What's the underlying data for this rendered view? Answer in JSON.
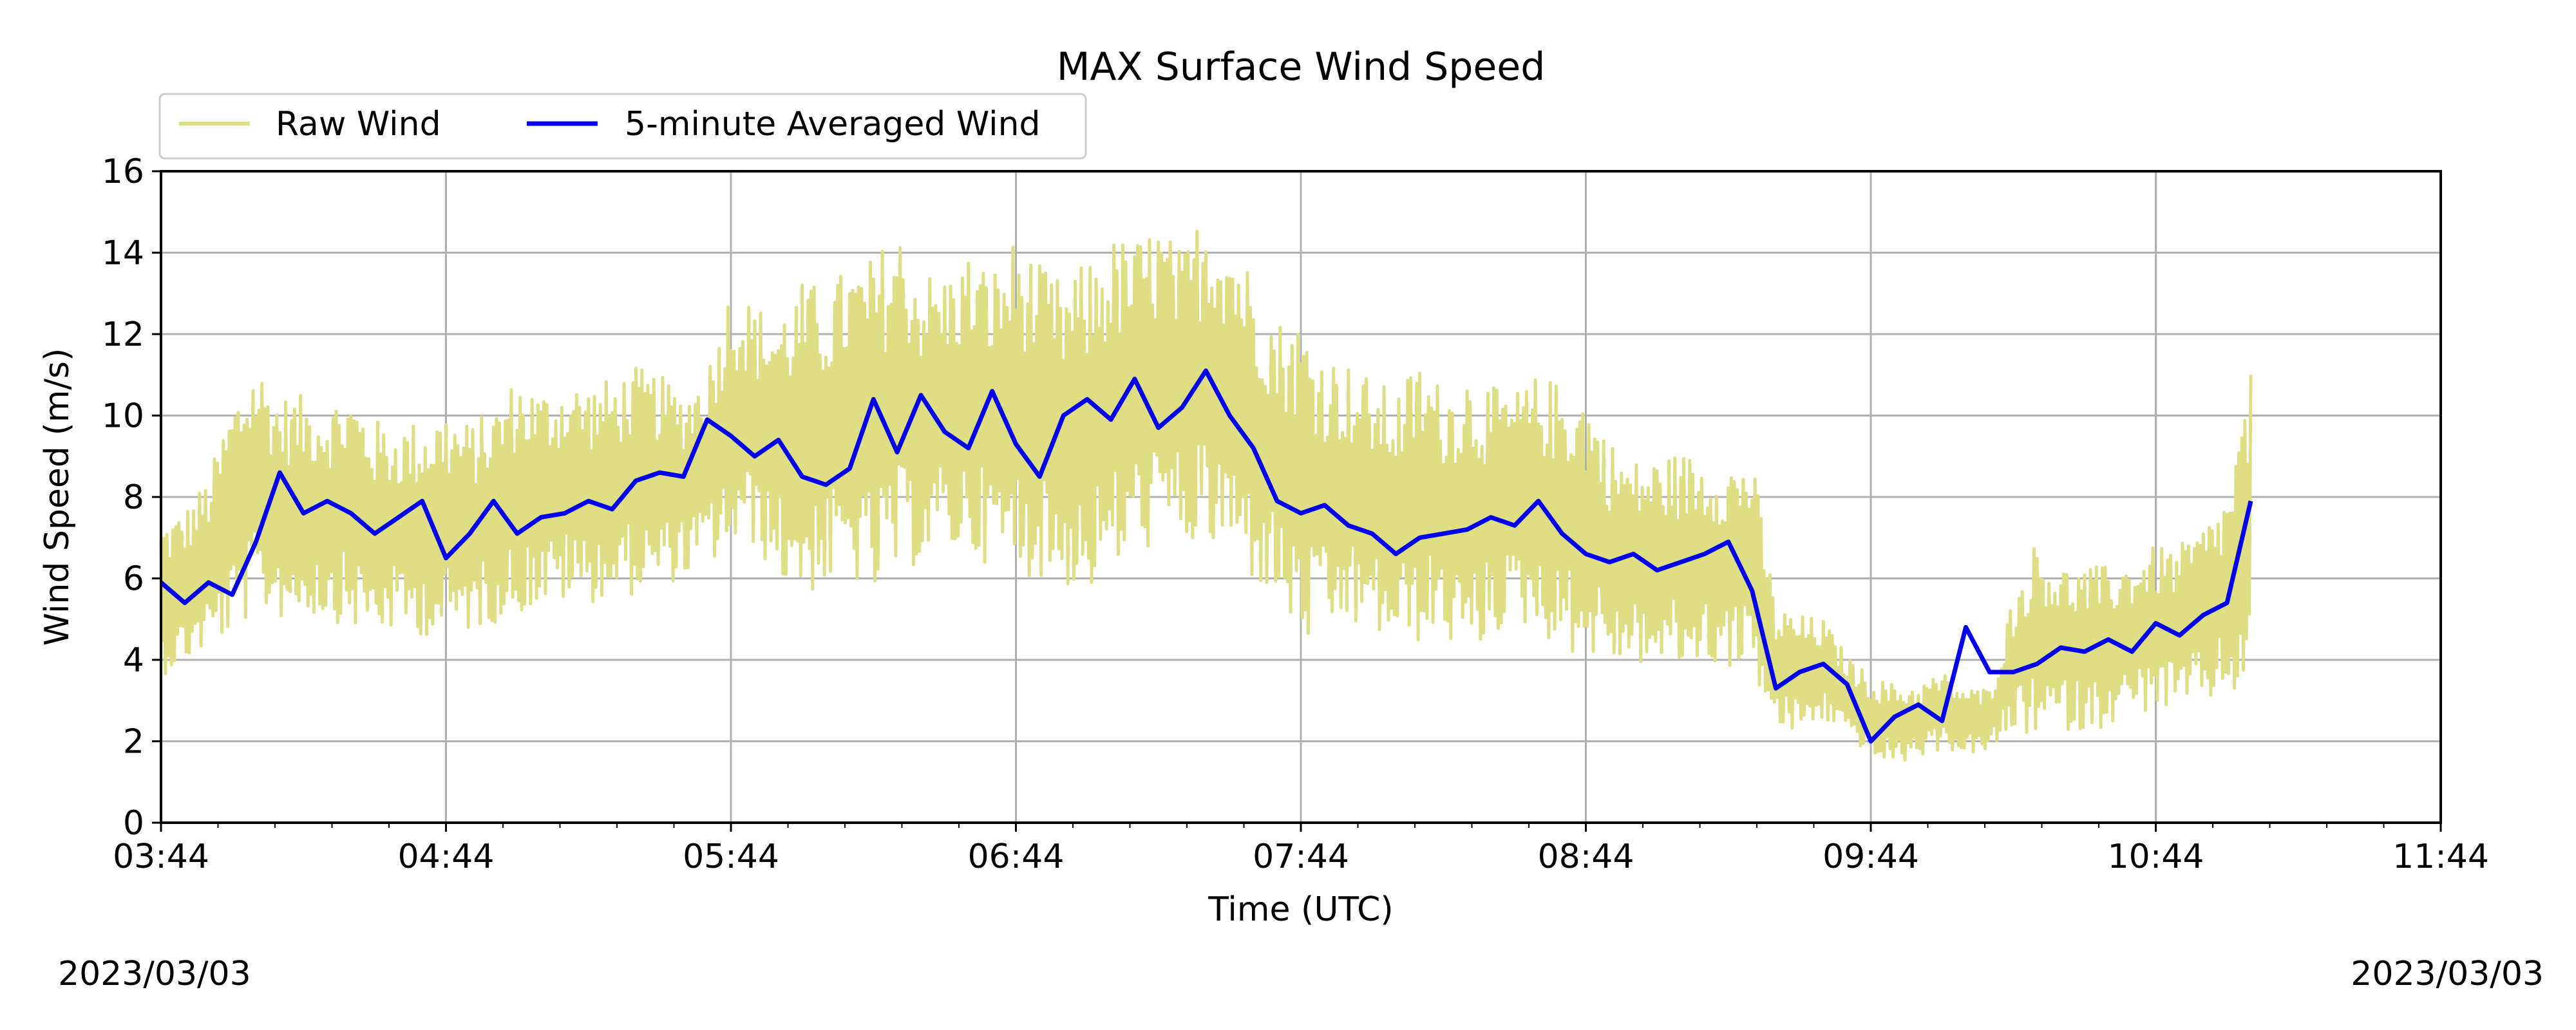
{
  "chart_data": {
    "type": "line",
    "title": "MAX Surface Wind Speed",
    "xlabel": "Time (UTC)",
    "ylabel": "Wind Speed (m/s)",
    "date_left": "2023/03/03",
    "date_right": "2023/03/03",
    "x_unit": "UTC time of day",
    "xlim": [
      "03:44",
      "11:44"
    ],
    "ylim": [
      0,
      16
    ],
    "x_ticks": [
      "03:44",
      "04:44",
      "05:44",
      "06:44",
      "07:44",
      "08:44",
      "09:44",
      "10:44",
      "11:44"
    ],
    "y_ticks": [
      "0",
      "2",
      "4",
      "6",
      "8",
      "10",
      "12",
      "14",
      "16"
    ],
    "grid": true,
    "legend_position": "above plot, top-left",
    "series": [
      {
        "name": "Raw Wind",
        "color": "#dede85",
        "kind": "raw",
        "x": [
          "03:44",
          "03:49",
          "03:54",
          "03:59",
          "04:04",
          "04:09",
          "04:14",
          "04:19",
          "04:24",
          "04:29",
          "04:34",
          "04:39",
          "04:44",
          "04:49",
          "04:54",
          "04:59",
          "05:04",
          "05:09",
          "05:14",
          "05:19",
          "05:24",
          "05:29",
          "05:34",
          "05:39",
          "05:44",
          "05:49",
          "05:54",
          "05:59",
          "06:04",
          "06:09",
          "06:14",
          "06:19",
          "06:24",
          "06:29",
          "06:34",
          "06:39",
          "06:44",
          "06:49",
          "06:54",
          "06:59",
          "07:04",
          "07:09",
          "07:14",
          "07:19",
          "07:24",
          "07:29",
          "07:34",
          "07:39",
          "07:44",
          "07:49",
          "07:54",
          "07:59",
          "08:04",
          "08:09",
          "08:14",
          "08:19",
          "08:24",
          "08:29",
          "08:34",
          "08:39",
          "08:44",
          "08:49",
          "08:54",
          "08:59",
          "09:04",
          "09:09",
          "09:14",
          "09:19",
          "09:24",
          "09:29",
          "09:34",
          "09:39",
          "09:44",
          "09:49",
          "09:54",
          "09:59",
          "10:04",
          "10:09",
          "10:14",
          "10:19",
          "10:24",
          "10:29",
          "10:34",
          "10:39",
          "10:44",
          "10:49",
          "10:54",
          "10:59",
          "11:04"
        ],
        "min": [
          3.6,
          3.9,
          4.3,
          4.6,
          5.2,
          5.0,
          5.1,
          5.0,
          4.8,
          4.6,
          4.7,
          4.6,
          4.5,
          4.7,
          4.9,
          5.1,
          5.3,
          5.4,
          5.4,
          5.5,
          5.6,
          5.8,
          6.0,
          6.3,
          6.6,
          6.8,
          5.9,
          5.6,
          5.7,
          6.0,
          5.4,
          6.0,
          6.4,
          6.6,
          6.6,
          6.3,
          6.1,
          6.0,
          5.8,
          5.6,
          6.0,
          6.6,
          6.8,
          6.8,
          6.6,
          6.5,
          5.9,
          5.4,
          4.3,
          4.5,
          4.8,
          4.6,
          4.4,
          4.4,
          4.6,
          3.8,
          4.6,
          4.9,
          4.7,
          4.2,
          4.1,
          3.9,
          3.9,
          3.8,
          3.8,
          3.9,
          3.8,
          3.8,
          2.2,
          2.2,
          2.5,
          2.2,
          1.6,
          1.4,
          1.6,
          1.8,
          1.7,
          1.7,
          2.2,
          2.1,
          2.3,
          2.2,
          2.4,
          2.6,
          2.8,
          2.7,
          2.9,
          3.1,
          3.2
        ],
        "max": [
          7.4,
          7.7,
          8.5,
          10.4,
          11.4,
          10.5,
          10.5,
          10.4,
          10.6,
          9.9,
          9.8,
          9.9,
          10.2,
          9.8,
          10.2,
          11.0,
          10.6,
          10.9,
          10.8,
          10.9,
          11.2,
          11.0,
          10.6,
          11.2,
          13.3,
          12.7,
          12.6,
          13.3,
          13.2,
          13.7,
          13.9,
          14.7,
          13.6,
          13.5,
          14.0,
          13.6,
          14.4,
          13.7,
          13.3,
          13.8,
          14.4,
          14.3,
          14.8,
          14.0,
          15.3,
          14.7,
          13.5,
          12.4,
          12.4,
          11.6,
          11.3,
          10.9,
          10.6,
          11.4,
          10.7,
          11.2,
          10.7,
          10.6,
          11.0,
          10.8,
          10.6,
          9.4,
          8.9,
          9.0,
          9.1,
          9.0,
          8.9,
          9.0,
          5.3,
          5.1,
          5.0,
          4.1,
          3.6,
          3.4,
          3.4,
          3.7,
          3.3,
          3.3,
          5.6,
          7.0,
          6.3,
          6.3,
          6.3,
          6.5,
          6.8,
          6.8,
          7.3,
          8.1,
          11.0
        ]
      },
      {
        "name": "5-minute Averaged Wind",
        "color": "#0000ee",
        "kind": "average",
        "x": [
          "03:44",
          "03:49",
          "03:54",
          "03:59",
          "04:04",
          "04:09",
          "04:14",
          "04:19",
          "04:24",
          "04:29",
          "04:34",
          "04:39",
          "04:44",
          "04:49",
          "04:54",
          "04:59",
          "05:04",
          "05:09",
          "05:14",
          "05:19",
          "05:24",
          "05:29",
          "05:34",
          "05:39",
          "05:44",
          "05:49",
          "05:54",
          "05:59",
          "06:04",
          "06:09",
          "06:14",
          "06:19",
          "06:24",
          "06:29",
          "06:34",
          "06:39",
          "06:44",
          "06:49",
          "06:54",
          "06:59",
          "07:04",
          "07:09",
          "07:14",
          "07:19",
          "07:24",
          "07:29",
          "07:34",
          "07:39",
          "07:44",
          "07:49",
          "07:54",
          "07:59",
          "08:04",
          "08:09",
          "08:14",
          "08:19",
          "08:24",
          "08:29",
          "08:34",
          "08:39",
          "08:44",
          "08:49",
          "08:54",
          "08:59",
          "09:04",
          "09:09",
          "09:14",
          "09:19",
          "09:24",
          "09:29",
          "09:34",
          "09:39",
          "09:44",
          "09:49",
          "09:54",
          "09:59",
          "10:04",
          "10:09",
          "10:14",
          "10:19",
          "10:24",
          "10:29",
          "10:34",
          "10:39",
          "10:44",
          "10:49",
          "10:54",
          "10:59",
          "11:04"
        ],
        "y": [
          5.9,
          5.4,
          5.9,
          5.6,
          6.9,
          8.6,
          7.6,
          7.9,
          7.6,
          7.1,
          7.5,
          7.9,
          6.5,
          7.1,
          7.9,
          7.1,
          7.5,
          7.6,
          7.9,
          7.7,
          8.4,
          8.6,
          8.5,
          9.9,
          9.5,
          9.0,
          9.4,
          8.5,
          8.3,
          8.7,
          10.4,
          9.1,
          10.5,
          9.6,
          9.2,
          10.6,
          9.3,
          8.5,
          10.0,
          10.4,
          9.9,
          10.9,
          9.7,
          10.2,
          11.1,
          10.0,
          9.2,
          7.9,
          7.6,
          7.8,
          7.3,
          7.1,
          6.6,
          7.0,
          7.1,
          7.2,
          7.5,
          7.3,
          7.9,
          7.1,
          6.6,
          6.4,
          6.6,
          6.2,
          6.4,
          6.6,
          6.9,
          5.7,
          3.3,
          3.7,
          3.9,
          3.4,
          2.0,
          2.6,
          2.9,
          2.5,
          4.8,
          3.7,
          3.7,
          3.9,
          4.3,
          4.2,
          4.5,
          4.2,
          4.9,
          4.6,
          5.1,
          5.4,
          7.9
        ]
      }
    ]
  }
}
